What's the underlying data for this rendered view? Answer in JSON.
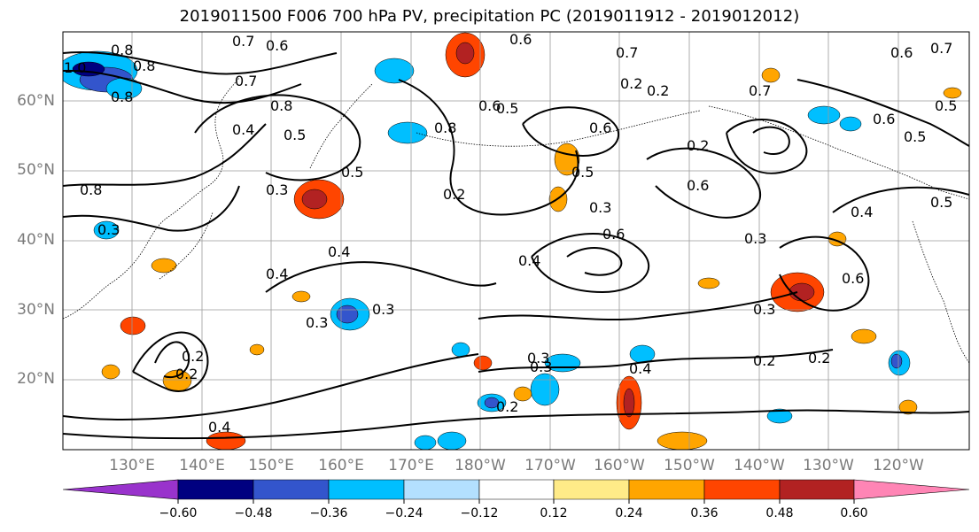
{
  "title": "2019011500 F006 700 hPa PV, precipitation PC (2019011912 - 2019012012)",
  "lat_labels": [
    "60°N",
    "50°N",
    "40°N",
    "30°N",
    "20°N"
  ],
  "lon_labels": [
    "130°E",
    "140°E",
    "150°E",
    "160°E",
    "170°E",
    "180°W",
    "170°W",
    "160°W",
    "150°W",
    "140°W",
    "130°W",
    "120°W"
  ],
  "colorbar": {
    "ticks": [
      "−0.60",
      "−0.48",
      "−0.36",
      "−0.24",
      "−0.12",
      "0.12",
      "0.24",
      "0.36",
      "0.48",
      "0.60"
    ],
    "colors": [
      "#9933cc",
      "#000080",
      "#3355cc",
      "#00bfff",
      "#b3e0ff",
      "#ffffff",
      "#ffeb88",
      "#ffa500",
      "#ff4500",
      "#b22222",
      "#ff85b5"
    ]
  },
  "contour_labels": [
    "0.8",
    "0.7",
    "0.6",
    "1.0",
    "0.8",
    "0.7",
    "0.8",
    "0.4",
    "0.5",
    "0.5",
    "0.5",
    "0.8",
    "0.3",
    "0.6",
    "0.8",
    "0.3",
    "0.4",
    "0.3",
    "0.2",
    "0.4",
    "0.3",
    "0.3",
    "0.4",
    "0.2",
    "0.2",
    "0.3",
    "0.2",
    "0.2",
    "0.6",
    "0.2",
    "0.6",
    "0.7",
    "0.6",
    "0.7",
    "0.2",
    "0.7",
    "0.6",
    "0.4",
    "0.4",
    "0.6",
    "0.5",
    "0.6",
    "0.5",
    "0.5",
    "0.4",
    "0.3",
    "0.3",
    "0.3",
    "0.2",
    "0.2",
    "0.8",
    "0.6",
    "0.5"
  ]
}
